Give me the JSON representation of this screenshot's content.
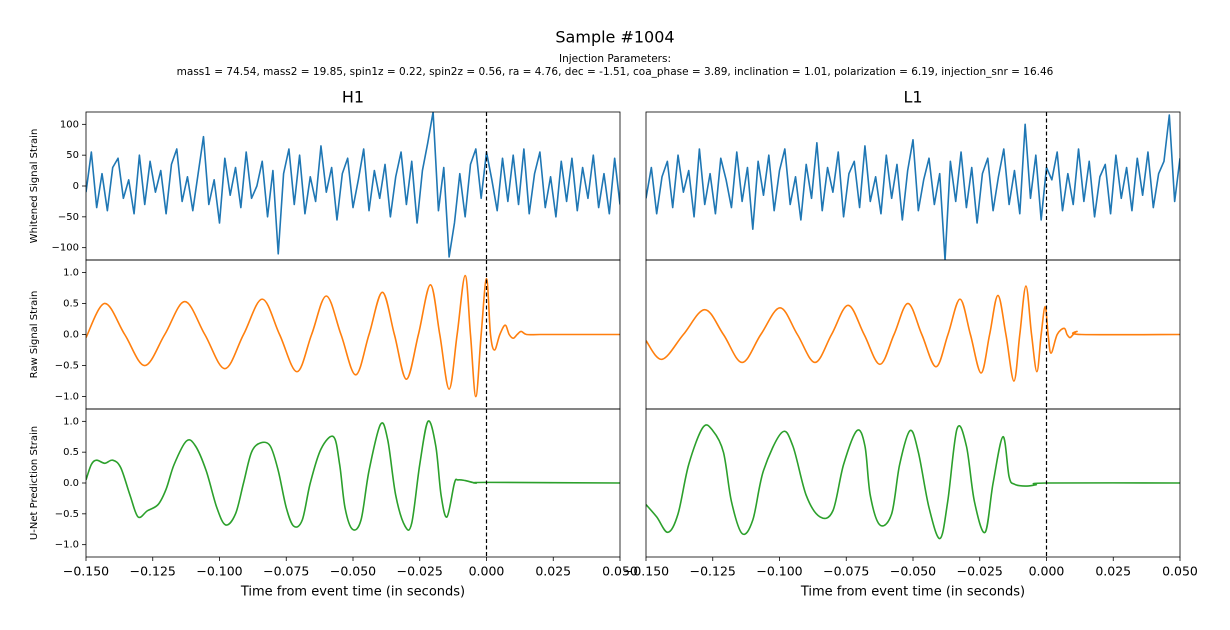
{
  "figure": {
    "title": "Sample #1004",
    "subtitle": "Injection Parameters:",
    "parameters": "mass1 = 74.54, mass2 = 19.85, spin1z = 0.22, spin2z = 0.56, ra = 4.76, dec = -1.51, coa_phase = 3.89, inclination = 1.01, polarization = 6.19, injection_snr = 16.46"
  },
  "chart_data": [
    {
      "type": "line",
      "title": "H1",
      "ylabel": "Whitened Signal Strain",
      "xlim": [
        -0.15,
        0.05
      ],
      "ylim": [
        -120,
        120
      ],
      "yticks": [
        {
          "value": -100,
          "label": "−100"
        },
        {
          "value": -50,
          "label": "−50"
        },
        0,
        50,
        100
      ],
      "vline": 0,
      "x": [
        -0.15,
        -0.148,
        -0.146,
        -0.144,
        -0.142,
        -0.14,
        -0.138,
        -0.136,
        -0.134,
        -0.132,
        -0.13,
        -0.128,
        -0.126,
        -0.124,
        -0.122,
        -0.12,
        -0.118,
        -0.116,
        -0.114,
        -0.112,
        -0.11,
        -0.108,
        -0.106,
        -0.104,
        -0.102,
        -0.1,
        -0.098,
        -0.096,
        -0.094,
        -0.092,
        -0.09,
        -0.088,
        -0.086,
        -0.084,
        -0.082,
        -0.08,
        -0.078,
        -0.076,
        -0.074,
        -0.072,
        -0.07,
        -0.068,
        -0.066,
        -0.064,
        -0.062,
        -0.06,
        -0.058,
        -0.056,
        -0.054,
        -0.052,
        -0.05,
        -0.048,
        -0.046,
        -0.044,
        -0.042,
        -0.04,
        -0.038,
        -0.036,
        -0.034,
        -0.032,
        -0.03,
        -0.028,
        -0.026,
        -0.024,
        -0.022,
        -0.02,
        -0.018,
        -0.016,
        -0.014,
        -0.012,
        -0.01,
        -0.008,
        -0.006,
        -0.004,
        -0.002,
        0,
        0.002,
        0.004,
        0.006,
        0.008,
        0.01,
        0.012,
        0.014,
        0.016,
        0.018,
        0.02,
        0.022,
        0.024,
        0.026,
        0.028,
        0.03,
        0.032,
        0.034,
        0.036,
        0.038,
        0.04,
        0.042,
        0.044,
        0.046,
        0.048,
        0.05
      ],
      "series": [
        {
          "color": "#1f77b4",
          "values": [
            -10,
            55,
            -35,
            20,
            -40,
            30,
            45,
            -20,
            10,
            -45,
            50,
            -30,
            40,
            -10,
            25,
            -45,
            35,
            60,
            -25,
            15,
            -40,
            20,
            80,
            -30,
            10,
            -60,
            45,
            -15,
            30,
            -35,
            55,
            -20,
            0,
            40,
            -50,
            25,
            -110,
            20,
            60,
            -30,
            50,
            -45,
            15,
            -25,
            65,
            -10,
            30,
            -55,
            20,
            45,
            -35,
            10,
            60,
            -40,
            25,
            -20,
            35,
            -50,
            15,
            55,
            -30,
            40,
            -60,
            25,
            70,
            120,
            -40,
            30,
            -115,
            -60,
            20,
            -50,
            35,
            60,
            -20,
            55,
            10,
            -40,
            45,
            -25,
            50,
            -30,
            60,
            -45,
            20,
            55,
            -35,
            15,
            -50,
            40,
            -25,
            45,
            -40,
            30,
            -20,
            50,
            -35,
            20,
            -45,
            45,
            -30
          ]
        }
      ]
    },
    {
      "type": "line",
      "title": "L1",
      "xlim": [
        -0.15,
        0.05
      ],
      "ylim": [
        -120,
        120
      ],
      "vline": 0,
      "x": [
        -0.15,
        -0.148,
        -0.146,
        -0.144,
        -0.142,
        -0.14,
        -0.138,
        -0.136,
        -0.134,
        -0.132,
        -0.13,
        -0.128,
        -0.126,
        -0.124,
        -0.122,
        -0.12,
        -0.118,
        -0.116,
        -0.114,
        -0.112,
        -0.11,
        -0.108,
        -0.106,
        -0.104,
        -0.102,
        -0.1,
        -0.098,
        -0.096,
        -0.094,
        -0.092,
        -0.09,
        -0.088,
        -0.086,
        -0.084,
        -0.082,
        -0.08,
        -0.078,
        -0.076,
        -0.074,
        -0.072,
        -0.07,
        -0.068,
        -0.066,
        -0.064,
        -0.062,
        -0.06,
        -0.058,
        -0.056,
        -0.054,
        -0.052,
        -0.05,
        -0.048,
        -0.046,
        -0.044,
        -0.042,
        -0.04,
        -0.038,
        -0.036,
        -0.034,
        -0.032,
        -0.03,
        -0.028,
        -0.026,
        -0.024,
        -0.022,
        -0.02,
        -0.018,
        -0.016,
        -0.014,
        -0.012,
        -0.01,
        -0.008,
        -0.006,
        -0.004,
        -0.002,
        0,
        0.002,
        0.004,
        0.006,
        0.008,
        0.01,
        0.012,
        0.014,
        0.016,
        0.018,
        0.02,
        0.022,
        0.024,
        0.026,
        0.028,
        0.03,
        0.032,
        0.034,
        0.036,
        0.038,
        0.04,
        0.042,
        0.044,
        0.046,
        0.048,
        0.05
      ],
      "series": [
        {
          "color": "#1f77b4",
          "values": [
            -20,
            30,
            -45,
            15,
            40,
            -35,
            50,
            -10,
            25,
            -50,
            60,
            -30,
            20,
            -45,
            45,
            10,
            -35,
            55,
            -25,
            30,
            -70,
            40,
            -15,
            50,
            -40,
            25,
            60,
            -30,
            15,
            -55,
            35,
            -20,
            70,
            -40,
            30,
            -10,
            55,
            -50,
            20,
            40,
            -35,
            65,
            -25,
            15,
            -45,
            50,
            -20,
            35,
            -55,
            25,
            75,
            -40,
            10,
            45,
            -30,
            20,
            -120,
            40,
            -25,
            55,
            -35,
            30,
            -60,
            20,
            45,
            -40,
            15,
            60,
            -30,
            25,
            -45,
            100,
            -20,
            50,
            -55,
            30,
            10,
            55,
            -40,
            20,
            -30,
            60,
            -25,
            40,
            -50,
            15,
            35,
            -45,
            50,
            -20,
            30,
            -40,
            45,
            -15,
            55,
            -35,
            20,
            40,
            115,
            -25,
            45
          ]
        }
      ]
    },
    {
      "type": "line",
      "smooth": true,
      "ylabel": "Raw Signal Strain",
      "xlim": [
        -0.15,
        0.05
      ],
      "ylim": [
        -1.2,
        1.2
      ],
      "yticks": [
        {
          "value": -1,
          "label": "−1.0"
        },
        {
          "value": -0.5,
          "label": "−0.5"
        },
        {
          "value": 0,
          "label": "0.0"
        },
        {
          "value": 0.5,
          "label": "0.5"
        },
        {
          "value": 1,
          "label": "1.0"
        }
      ],
      "vline": 0,
      "x": [
        -0.15,
        -0.143,
        -0.1355,
        -0.128,
        -0.1205,
        -0.113,
        -0.1055,
        -0.098,
        -0.091,
        -0.084,
        -0.0775,
        -0.071,
        -0.0655,
        -0.06,
        -0.0545,
        -0.049,
        -0.044,
        -0.039,
        -0.0345,
        -0.03,
        -0.0255,
        -0.021,
        -0.0175,
        -0.014,
        -0.011,
        -0.008,
        -0.006,
        -0.004,
        -0.002,
        0,
        0.0015,
        0.003,
        0.005,
        0.007,
        0.0085,
        0.01,
        0.0115,
        0.013,
        0.015,
        0.02,
        0.03,
        0.05
      ],
      "series": [
        {
          "color": "#ff7f0e",
          "values": [
            -0.05,
            0.5,
            0,
            -0.5,
            0,
            0.53,
            0,
            -0.55,
            0,
            0.57,
            0,
            -0.6,
            0,
            0.62,
            0,
            -0.65,
            0,
            0.68,
            0,
            -0.72,
            0,
            0.8,
            0,
            -0.88,
            0,
            0.95,
            0,
            -1,
            0,
            0.9,
            0,
            -0.25,
            0,
            0.15,
            0,
            -0.06,
            0,
            0.05,
            0,
            0,
            0,
            0
          ]
        }
      ]
    },
    {
      "type": "line",
      "smooth": true,
      "xlim": [
        -0.15,
        0.05
      ],
      "ylim": [
        -1.2,
        1.2
      ],
      "vline": 0,
      "x": [
        -0.15,
        -0.144,
        -0.136,
        -0.128,
        -0.121,
        -0.114,
        -0.107,
        -0.0998,
        -0.0933,
        -0.0867,
        -0.0805,
        -0.0743,
        -0.0683,
        -0.0624,
        -0.0571,
        -0.0519,
        -0.0467,
        -0.0414,
        -0.0369,
        -0.0324,
        -0.0285,
        -0.0245,
        -0.0213,
        -0.0182,
        -0.0152,
        -0.0122,
        -0.01,
        -0.0077,
        -0.0056,
        -0.0036,
        -0.002,
        -0.0005,
        0.0006,
        0.0017,
        0.004,
        0.0066,
        0.0077,
        0.0088,
        0.01,
        0.0114,
        0.013,
        0.05
      ],
      "series": [
        {
          "color": "#ff7f0e",
          "values": [
            -0.1,
            -0.4,
            0,
            0.4,
            0,
            -0.45,
            0,
            0.43,
            0,
            -0.45,
            0,
            0.47,
            0,
            -0.48,
            0,
            0.5,
            0,
            -0.52,
            0,
            0.57,
            0,
            -0.62,
            0,
            0.63,
            0,
            -0.75,
            0,
            0.78,
            0,
            -0.6,
            0,
            0.45,
            0,
            -0.3,
            0,
            0.1,
            0,
            -0.05,
            0,
            0.05,
            0,
            0
          ]
        }
      ]
    },
    {
      "type": "line",
      "smooth": true,
      "ylabel": "U-Net Prediction Strain",
      "xlabel": "Time from event time (in seconds)",
      "xlim": [
        -0.15,
        0.05
      ],
      "ylim": [
        -1.2,
        1.2
      ],
      "yticks": [
        {
          "value": -1,
          "label": "−1.0"
        },
        {
          "value": -0.5,
          "label": "−0.5"
        },
        {
          "value": 0,
          "label": "0.0"
        },
        {
          "value": 0.5,
          "label": "0.5"
        },
        {
          "value": 1,
          "label": "1.0"
        }
      ],
      "xticks": [
        {
          "value": -0.15,
          "label": "−0.150"
        },
        {
          "value": -0.125,
          "label": "−0.125"
        },
        {
          "value": -0.1,
          "label": "−0.100"
        },
        {
          "value": -0.075,
          "label": "−0.075"
        },
        {
          "value": -0.05,
          "label": "−0.050"
        },
        {
          "value": -0.025,
          "label": "−0.025"
        },
        {
          "value": 0,
          "label": "0.000"
        },
        {
          "value": 0.025,
          "label": "0.025"
        },
        {
          "value": 0.05,
          "label": "0.050"
        }
      ],
      "vline": 0,
      "x": [
        -0.15,
        -0.148,
        -0.146,
        -0.143,
        -0.14,
        -0.137,
        -0.1335,
        -0.1305,
        -0.127,
        -0.123,
        -0.12,
        -0.117,
        -0.1124,
        -0.109,
        -0.105,
        -0.101,
        -0.0977,
        -0.094,
        -0.091,
        -0.088,
        -0.0846,
        -0.081,
        -0.078,
        -0.075,
        -0.0722,
        -0.069,
        -0.066,
        -0.062,
        -0.0573,
        -0.055,
        -0.053,
        -0.0502,
        -0.047,
        -0.044,
        -0.0397,
        -0.037,
        -0.034,
        -0.0305,
        -0.028,
        -0.025,
        -0.0219,
        -0.019,
        -0.017,
        -0.0148,
        -0.012,
        -0.0107,
        -0.008,
        -0.004,
        0,
        0.05
      ],
      "series": [
        {
          "color": "#2ca02c",
          "values": [
            0.05,
            0.3,
            0.37,
            0.32,
            0.37,
            0.25,
            -0.2,
            -0.55,
            -0.45,
            -0.35,
            -0.1,
            0.3,
            0.68,
            0.6,
            0.2,
            -0.4,
            -0.68,
            -0.5,
            0,
            0.5,
            0.65,
            0.6,
            0.2,
            -0.4,
            -0.7,
            -0.6,
            0,
            0.55,
            0.75,
            0.3,
            -0.4,
            -0.75,
            -0.6,
            0.2,
            0.95,
            0.7,
            -0.2,
            -0.7,
            -0.65,
            0.3,
            1,
            0.6,
            -0.2,
            -0.55,
            0,
            0.05,
            0.04,
            0,
            0.01,
            0
          ]
        }
      ]
    },
    {
      "type": "line",
      "smooth": true,
      "xlabel": "Time from event time (in seconds)",
      "xlim": [
        -0.15,
        0.05
      ],
      "ylim": [
        -1.2,
        1.2
      ],
      "xticks": [
        {
          "value": -0.15,
          "label": "−0.150"
        },
        {
          "value": -0.125,
          "label": "−0.125"
        },
        {
          "value": -0.1,
          "label": "−0.100"
        },
        {
          "value": -0.075,
          "label": "−0.075"
        },
        {
          "value": -0.05,
          "label": "−0.050"
        },
        {
          "value": -0.025,
          "label": "−0.025"
        },
        {
          "value": 0,
          "label": "0.000"
        },
        {
          "value": 0.025,
          "label": "0.025"
        },
        {
          "value": 0.05,
          "label": "0.050"
        }
      ],
      "vline": 0,
      "x": [
        -0.15,
        -0.146,
        -0.1418,
        -0.138,
        -0.134,
        -0.1287,
        -0.125,
        -0.121,
        -0.118,
        -0.114,
        -0.11,
        -0.106,
        -0.0991,
        -0.095,
        -0.09,
        -0.0848,
        -0.08,
        -0.076,
        -0.071,
        -0.068,
        -0.066,
        -0.0624,
        -0.058,
        -0.055,
        -0.0511,
        -0.048,
        -0.044,
        -0.0399,
        -0.037,
        -0.0335,
        -0.03,
        -0.027,
        -0.023,
        -0.02,
        -0.0163,
        -0.014,
        -0.012,
        -0.008,
        -0.004,
        0,
        0.05
      ],
      "series": [
        {
          "color": "#2ca02c",
          "values": [
            -0.35,
            -0.55,
            -0.8,
            -0.5,
            0.3,
            0.9,
            0.85,
            0.5,
            -0.3,
            -0.82,
            -0.6,
            0.2,
            0.82,
            0.6,
            -0.2,
            -0.55,
            -0.45,
            0.3,
            0.85,
            0.6,
            -0.2,
            -0.68,
            -0.5,
            0.3,
            0.85,
            0.5,
            -0.4,
            -0.9,
            -0.3,
            0.88,
            0.6,
            -0.3,
            -0.8,
            0,
            0.75,
            0.1,
            -0.02,
            -0.05,
            -0.03,
            0,
            0
          ]
        }
      ]
    }
  ]
}
